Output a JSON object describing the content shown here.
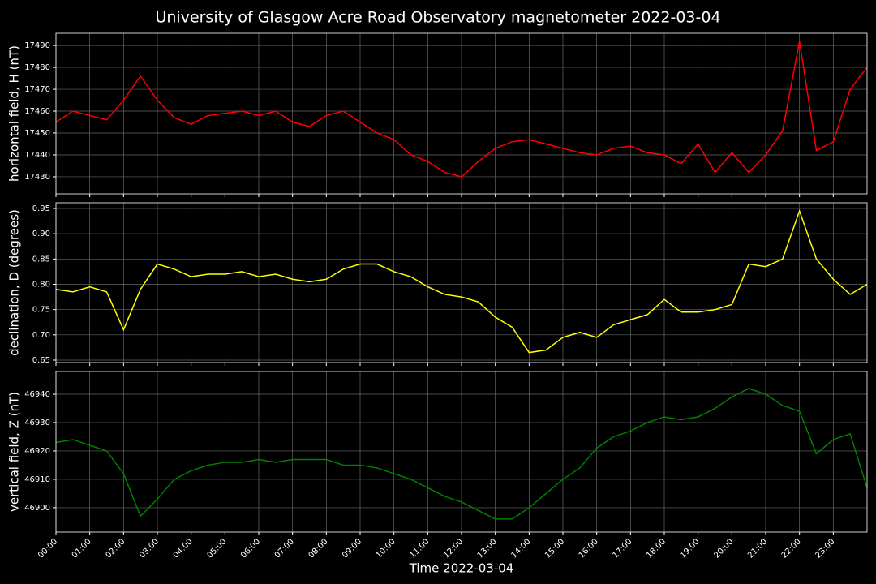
{
  "chart_data": [
    {
      "type": "line",
      "title": "University of Glasgow Acre Road Observatory magnetometer 2022-03-04",
      "ylabel": "horizontal field, H (nT)",
      "x": [
        0,
        0.5,
        1,
        1.5,
        2,
        2.5,
        3,
        3.5,
        4,
        4.5,
        5,
        5.5,
        6,
        6.5,
        7,
        7.5,
        8,
        8.5,
        9,
        9.5,
        10,
        10.5,
        11,
        11.5,
        12,
        12.5,
        13,
        13.5,
        14,
        14.5,
        15,
        15.5,
        16,
        16.5,
        17,
        17.5,
        18,
        18.5,
        19,
        19.5,
        20,
        20.5,
        21,
        21.5,
        22,
        22.5,
        23,
        23.5,
        24
      ],
      "series": [
        {
          "color": "#ff0000",
          "values": [
            17455,
            17460,
            17458,
            17456,
            17465,
            17476,
            17465,
            17457,
            17454,
            17458,
            17459,
            17460,
            17458,
            17460,
            17455,
            17453,
            17458,
            17460,
            17455,
            17450,
            17447,
            17440,
            17437,
            17432,
            17430,
            17437,
            17443,
            17446,
            17447,
            17445,
            17443,
            17441,
            17440,
            17443,
            17444,
            17441,
            17440,
            17436,
            17445,
            17432,
            17441,
            17432,
            17440,
            17451,
            17492,
            17442,
            17446,
            17470,
            17480
          ]
        }
      ],
      "xlim": [
        0,
        24
      ],
      "xticks": [
        0,
        1,
        2,
        3,
        4,
        5,
        6,
        7,
        8,
        9,
        10,
        11,
        12,
        13,
        14,
        15,
        16,
        17,
        18,
        19,
        20,
        21,
        22,
        23
      ],
      "ylim": [
        17422.2,
        17495.6
      ],
      "yticks": [
        17430,
        17440,
        17450,
        17460,
        17470,
        17480,
        17490
      ],
      "grid": true
    },
    {
      "type": "line",
      "ylabel": "declination, D (degrees)",
      "x": [
        0,
        0.5,
        1,
        1.5,
        2,
        2.5,
        3,
        3.5,
        4,
        4.5,
        5,
        5.5,
        6,
        6.5,
        7,
        7.5,
        8,
        8.5,
        9,
        9.5,
        10,
        10.5,
        11,
        11.5,
        12,
        12.5,
        13,
        13.5,
        14,
        14.5,
        15,
        15.5,
        16,
        16.5,
        17,
        17.5,
        18,
        18.5,
        19,
        19.5,
        20,
        20.5,
        21,
        21.5,
        22,
        22.5,
        23,
        23.5,
        24
      ],
      "series": [
        {
          "color": "#ffff00",
          "values": [
            0.79,
            0.785,
            0.795,
            0.785,
            0.71,
            0.79,
            0.84,
            0.83,
            0.815,
            0.82,
            0.82,
            0.825,
            0.815,
            0.82,
            0.81,
            0.805,
            0.81,
            0.83,
            0.84,
            0.84,
            0.825,
            0.815,
            0.795,
            0.78,
            0.775,
            0.765,
            0.735,
            0.715,
            0.665,
            0.67,
            0.695,
            0.705,
            0.695,
            0.72,
            0.73,
            0.74,
            0.77,
            0.745,
            0.745,
            0.75,
            0.76,
            0.84,
            0.835,
            0.85,
            0.945,
            0.85,
            0.81,
            0.78,
            0.8
          ]
        }
      ],
      "xlim": [
        0,
        24
      ],
      "xticks": [
        0,
        1,
        2,
        3,
        4,
        5,
        6,
        7,
        8,
        9,
        10,
        11,
        12,
        13,
        14,
        15,
        16,
        17,
        18,
        19,
        20,
        21,
        22,
        23
      ],
      "ylim": [
        0.6452,
        0.9612
      ],
      "yticks": [
        0.65,
        {
          "value": 0.7,
          "label": "0.70"
        },
        0.75,
        {
          "value": 0.8,
          "label": "0.80"
        },
        0.85,
        {
          "value": 0.9,
          "label": "0.90"
        },
        0.95
      ],
      "grid": true
    },
    {
      "type": "line",
      "ylabel": "vertical field, Z (nT)",
      "xlabel": "Time 2022-03-04",
      "x": [
        0,
        0.5,
        1,
        1.5,
        2,
        2.5,
        3,
        3.5,
        4,
        4.5,
        5,
        5.5,
        6,
        6.5,
        7,
        7.5,
        8,
        8.5,
        9,
        9.5,
        10,
        10.5,
        11,
        11.5,
        12,
        12.5,
        13,
        13.5,
        14,
        14.5,
        15,
        15.5,
        16,
        16.5,
        17,
        17.5,
        18,
        18.5,
        19,
        19.5,
        20,
        20.5,
        21,
        21.5,
        22,
        22.5,
        23,
        23.5,
        24
      ],
      "series": [
        {
          "color": "#008000",
          "values": [
            46923,
            46924,
            46922,
            46920,
            46912,
            46897,
            46903,
            46910,
            46913,
            46915,
            46916,
            46916,
            46917,
            46916,
            46917,
            46917,
            46917,
            46915,
            46915,
            46914,
            46912,
            46910,
            46907,
            46904,
            46902,
            46899,
            46896,
            46896,
            46900,
            46905,
            46910,
            46914,
            46921,
            46925,
            46927,
            46930,
            46932,
            46931,
            46932,
            46935,
            46939,
            46942,
            46940,
            46936,
            46934,
            46919,
            46924,
            46926,
            46907
          ]
        }
      ],
      "xlim": [
        0,
        24
      ],
      "xticks": [
        {
          "value": 0,
          "label": "00:00"
        },
        {
          "value": 1,
          "label": "01:00"
        },
        {
          "value": 2,
          "label": "02:00"
        },
        {
          "value": 3,
          "label": "03:00"
        },
        {
          "value": 4,
          "label": "04:00"
        },
        {
          "value": 5,
          "label": "05:00"
        },
        {
          "value": 6,
          "label": "06:00"
        },
        {
          "value": 7,
          "label": "07:00"
        },
        {
          "value": 8,
          "label": "08:00"
        },
        {
          "value": 9,
          "label": "09:00"
        },
        {
          "value": 10,
          "label": "10:00"
        },
        {
          "value": 11,
          "label": "11:00"
        },
        {
          "value": 12,
          "label": "12:00"
        },
        {
          "value": 13,
          "label": "13:00"
        },
        {
          "value": 14,
          "label": "14:00"
        },
        {
          "value": 15,
          "label": "15:00"
        },
        {
          "value": 16,
          "label": "16:00"
        },
        {
          "value": 17,
          "label": "17:00"
        },
        {
          "value": 18,
          "label": "18:00"
        },
        {
          "value": 19,
          "label": "19:00"
        },
        {
          "value": 20,
          "label": "20:00"
        },
        {
          "value": 21,
          "label": "21:00"
        },
        {
          "value": 22,
          "label": "22:00"
        },
        {
          "value": 23,
          "label": "23:00"
        }
      ],
      "ylim": [
        46891.4,
        46948
      ],
      "yticks": [
        46900,
        46910,
        46920,
        46930,
        46940
      ],
      "grid": true
    }
  ]
}
